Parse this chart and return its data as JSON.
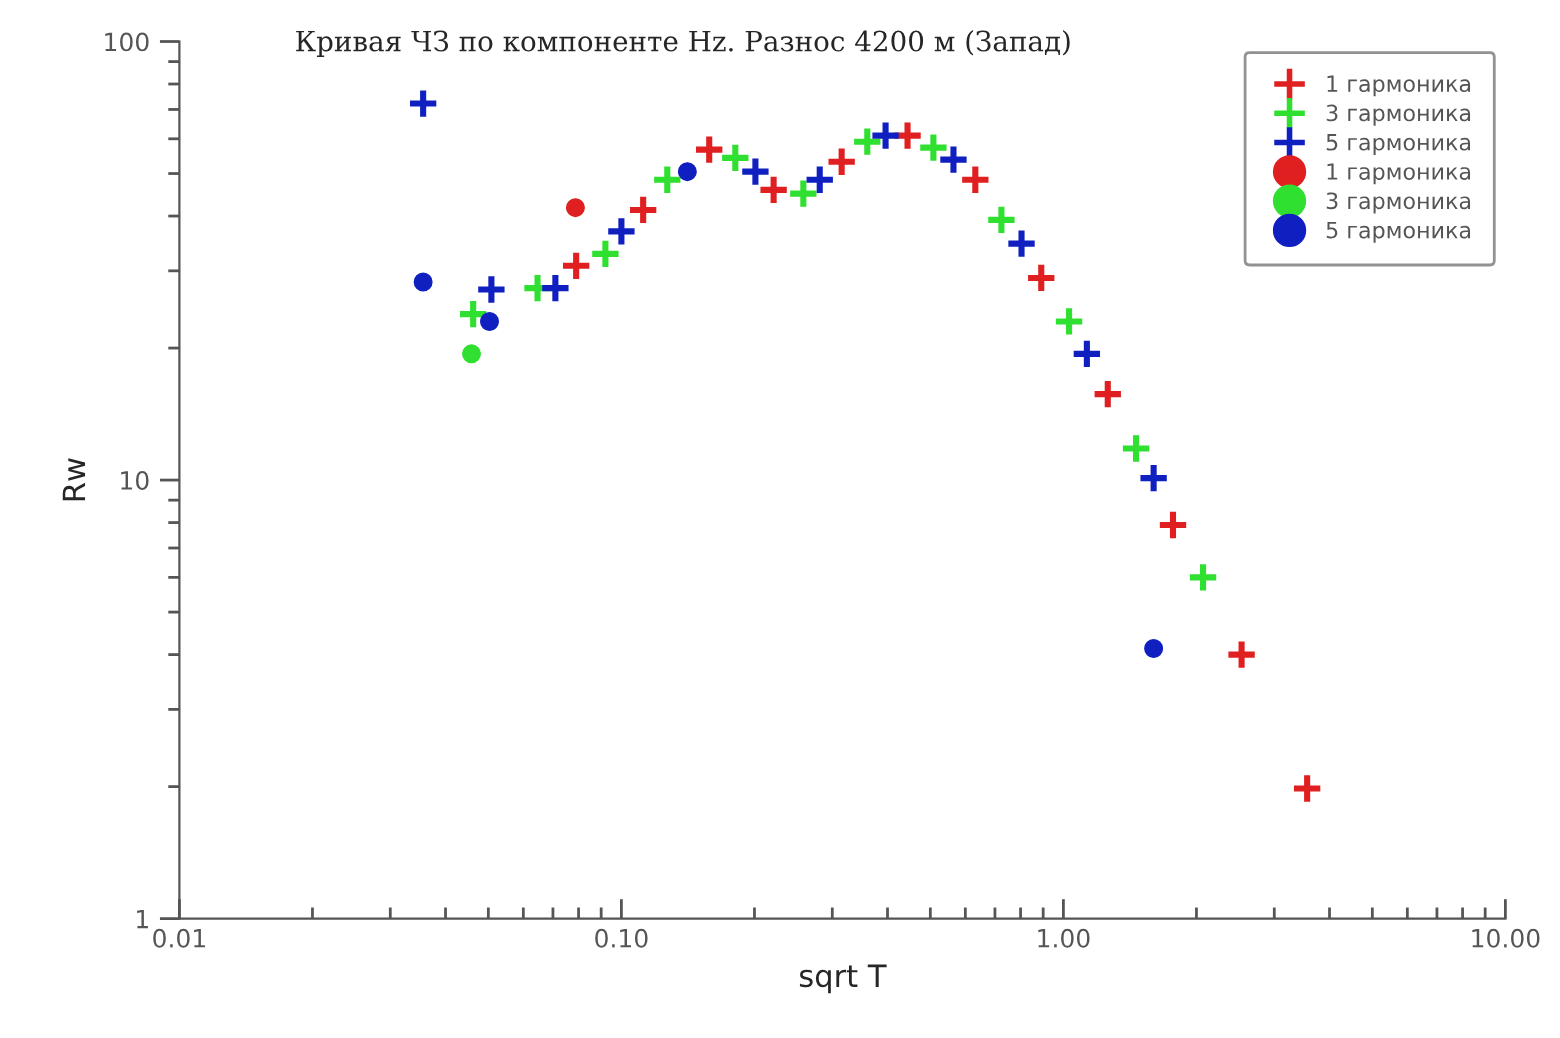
{
  "chart_data": {
    "type": "scatter",
    "title": "Кривая ЧЗ по компоненте Hz. Разнос 4200 м (Запад)",
    "xlabel": "sqrt T",
    "ylabel": "Rw",
    "log": "xy",
    "grid": false,
    "legend": "top right",
    "xlim": [
      0.01,
      10
    ],
    "ylim": [
      1,
      100
    ],
    "xticks": [
      0.01,
      {
        "value": 0.1,
        "label": "0.10"
      },
      {
        "value": 1,
        "label": "1.00"
      },
      {
        "value": 10,
        "label": "10.00"
      }
    ],
    "yticks": [
      1,
      10,
      100
    ],
    "series": [
      {
        "name": "1 гармоника",
        "color": "#e02020",
        "marker": "cross",
        "x": [
          0.079,
          0.112,
          0.158,
          0.221,
          0.315,
          0.444,
          0.632,
          0.891,
          1.26,
          1.77,
          2.53,
          3.56
        ],
        "values": [
          30.8,
          41.3,
          56.7,
          45.9,
          53.2,
          61.0,
          48.4,
          28.9,
          15.7,
          7.9,
          4.0,
          1.98
        ]
      },
      {
        "name": "3 гармоника",
        "color": "#30e030",
        "marker": "cross",
        "x": [
          0.0462,
          0.0646,
          0.092,
          0.127,
          0.181,
          0.258,
          0.36,
          0.508,
          0.724,
          1.03,
          1.46,
          2.07
        ],
        "values": [
          23.9,
          27.4,
          32.8,
          48.4,
          54.3,
          45.0,
          59.1,
          57.3,
          39.2,
          23.0,
          11.8,
          6.0
        ]
      },
      {
        "name": "5 гармоника",
        "color": "#1020c0",
        "marker": "cross",
        "x": [
          0.0356,
          0.0508,
          0.0709,
          0.1,
          0.201,
          0.281,
          0.396,
          0.564,
          0.804,
          1.13,
          1.6
        ],
        "values": [
          72.2,
          27.2,
          27.4,
          36.9,
          50.5,
          48.4,
          61.0,
          53.8,
          34.6,
          19.4,
          10.1
        ]
      },
      {
        "name": "1 гармоника",
        "color": "#e02020",
        "marker": "circle",
        "x": [
          0.0787
        ],
        "values": [
          41.8
        ]
      },
      {
        "name": "3 гармоника",
        "color": "#30e030",
        "marker": "circle",
        "x": [
          0.0458
        ],
        "values": [
          19.4
        ]
      },
      {
        "name": "5 гармоника",
        "color": "#1020c0",
        "marker": "circle",
        "x": [
          0.0356,
          0.0503,
          0.141,
          1.6
        ],
        "values": [
          28.3,
          23.0,
          50.5,
          4.13
        ]
      }
    ]
  }
}
